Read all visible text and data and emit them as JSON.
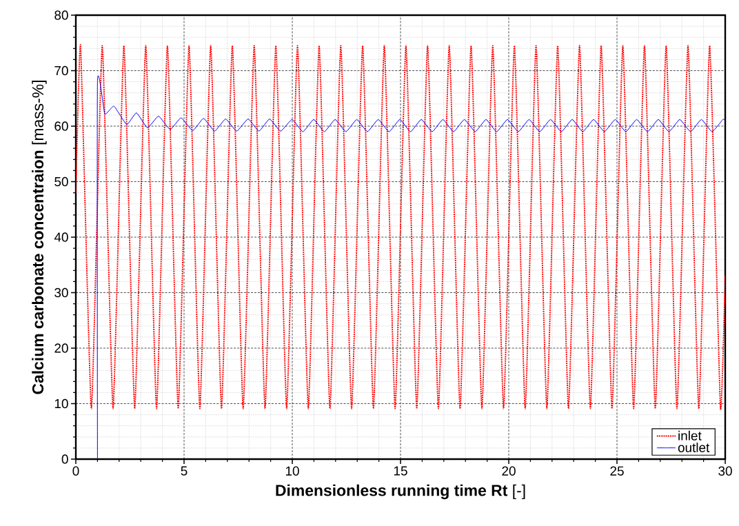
{
  "chart_data": {
    "type": "line",
    "xlabel": "**Dimensionless running time Rt** [-]",
    "ylabel": "**Calcium carbonate concentraion** [mass-%]",
    "xlim": [
      0,
      30
    ],
    "ylim": [
      0,
      80
    ],
    "xticks": [
      0,
      5,
      10,
      15,
      20,
      25,
      30
    ],
    "yticks": [
      0,
      10,
      20,
      30,
      40,
      50,
      60,
      70,
      80
    ],
    "grid": true,
    "legend": "bottom right",
    "series": [
      {
        "name": "inlet",
        "color": "#ff0000",
        "line_style": "dotted",
        "x": [
          0,
          0.22,
          0.72,
          1.22,
          1.72,
          2.22,
          2.72,
          3.23,
          3.73,
          4.23,
          4.73,
          5.23,
          5.73,
          6.23,
          6.73,
          7.23,
          7.73,
          8.24,
          8.74,
          9.24,
          9.74,
          10.24,
          10.74,
          11.24,
          11.74,
          12.24,
          12.74,
          13.25,
          13.75,
          14.25,
          14.75,
          15.25,
          15.75,
          16.25,
          16.75,
          17.25,
          17.75,
          18.26,
          18.76,
          19.26,
          19.76,
          20.26,
          20.76,
          21.26,
          21.76,
          22.26,
          22.76,
          23.27,
          23.77,
          24.27,
          24.77,
          25.27,
          25.77,
          26.27,
          26.77,
          27.27,
          27.77,
          28.28,
          28.78,
          29.28,
          29.78,
          30
        ],
        "values": [
          48,
          74.5,
          9.1,
          74.5,
          9.1,
          74.5,
          9.1,
          74.5,
          9.1,
          74.5,
          9.1,
          74.5,
          9.1,
          74.5,
          9.1,
          74.5,
          9.1,
          74.5,
          9.1,
          74.5,
          9.1,
          74.5,
          9.1,
          74.5,
          9.1,
          74.5,
          9.1,
          74.5,
          9.1,
          74.5,
          9.1,
          74.5,
          9.1,
          74.5,
          9.1,
          74.5,
          9.1,
          74.5,
          9.1,
          74.5,
          9.1,
          74.5,
          9.1,
          74.5,
          9.1,
          74.5,
          9.1,
          74.5,
          9.1,
          74.5,
          9.1,
          74.5,
          9.1,
          74.5,
          9.1,
          74.5,
          9.1,
          74.5,
          9.1,
          74.5,
          9.1,
          33
        ]
      },
      {
        "name": "outlet",
        "color": "#0000ff",
        "line_style": "solid",
        "x": [
          1,
          1,
          1.34,
          1.76,
          2.35,
          2.8,
          3.31,
          3.82,
          4.36,
          4.86,
          5.4,
          5.9,
          6.41,
          6.92,
          7.43,
          7.96,
          8.46,
          8.95,
          9.46,
          9.99,
          10.49,
          10.99,
          11.48,
          11.98,
          12.48,
          12.98,
          13.47,
          13.97,
          14.47,
          14.97,
          15.46,
          15.96,
          16.46,
          16.96,
          17.45,
          17.95,
          18.45,
          18.95,
          19.44,
          19.94,
          20.44,
          20.94,
          21.43,
          21.93,
          22.43,
          22.93,
          23.42,
          23.92,
          24.42,
          24.92,
          25.41,
          25.91,
          26.41,
          26.91,
          27.4,
          27.9,
          28.4,
          28.9,
          29.39,
          29.89,
          30
        ],
        "values": [
          0,
          68,
          62.2,
          63.6,
          60.3,
          62.4,
          59.7,
          61.8,
          59.4,
          61.5,
          59.2,
          61.4,
          59.1,
          61.3,
          59.1,
          61.3,
          59.1,
          61.3,
          59.1,
          61.2,
          59,
          61.2,
          59,
          61.2,
          59,
          61.2,
          59,
          61.2,
          59,
          61.2,
          59,
          61.2,
          59,
          61.2,
          59,
          61.2,
          59,
          61.2,
          59,
          61.2,
          59,
          61.2,
          59,
          61.2,
          59,
          61.2,
          59,
          61.2,
          59,
          61.2,
          59,
          61.2,
          59,
          61.2,
          59,
          61.2,
          59,
          61.2,
          59,
          61.2,
          61.1
        ]
      }
    ]
  }
}
